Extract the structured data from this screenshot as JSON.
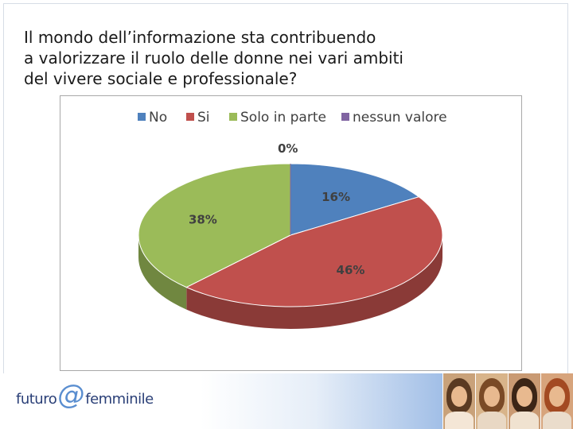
{
  "slide": {
    "title_lines": [
      "Il mondo dell’informazione sta contribuendo",
      "a valorizzare il ruolo delle donne nei vari ambiti",
      "del vivere sociale e professionale?"
    ]
  },
  "chart_data": {
    "type": "pie",
    "title": "",
    "legend_position": "top",
    "labels": [
      "No",
      "Si",
      "Solo in parte",
      "nessun valore"
    ],
    "values": [
      16,
      46,
      38,
      0
    ],
    "value_labels": [
      "16%",
      "46%",
      "38%",
      "0%"
    ],
    "colors": [
      "#4f81bd",
      "#c0504d",
      "#9bbb59",
      "#8064a2"
    ]
  },
  "footer": {
    "logo_part1": "futuro",
    "logo_at": "@",
    "logo_part2": "femminile"
  },
  "colors": {
    "title_text": "#1a1a1a",
    "logo_text": "#2a3f77"
  }
}
